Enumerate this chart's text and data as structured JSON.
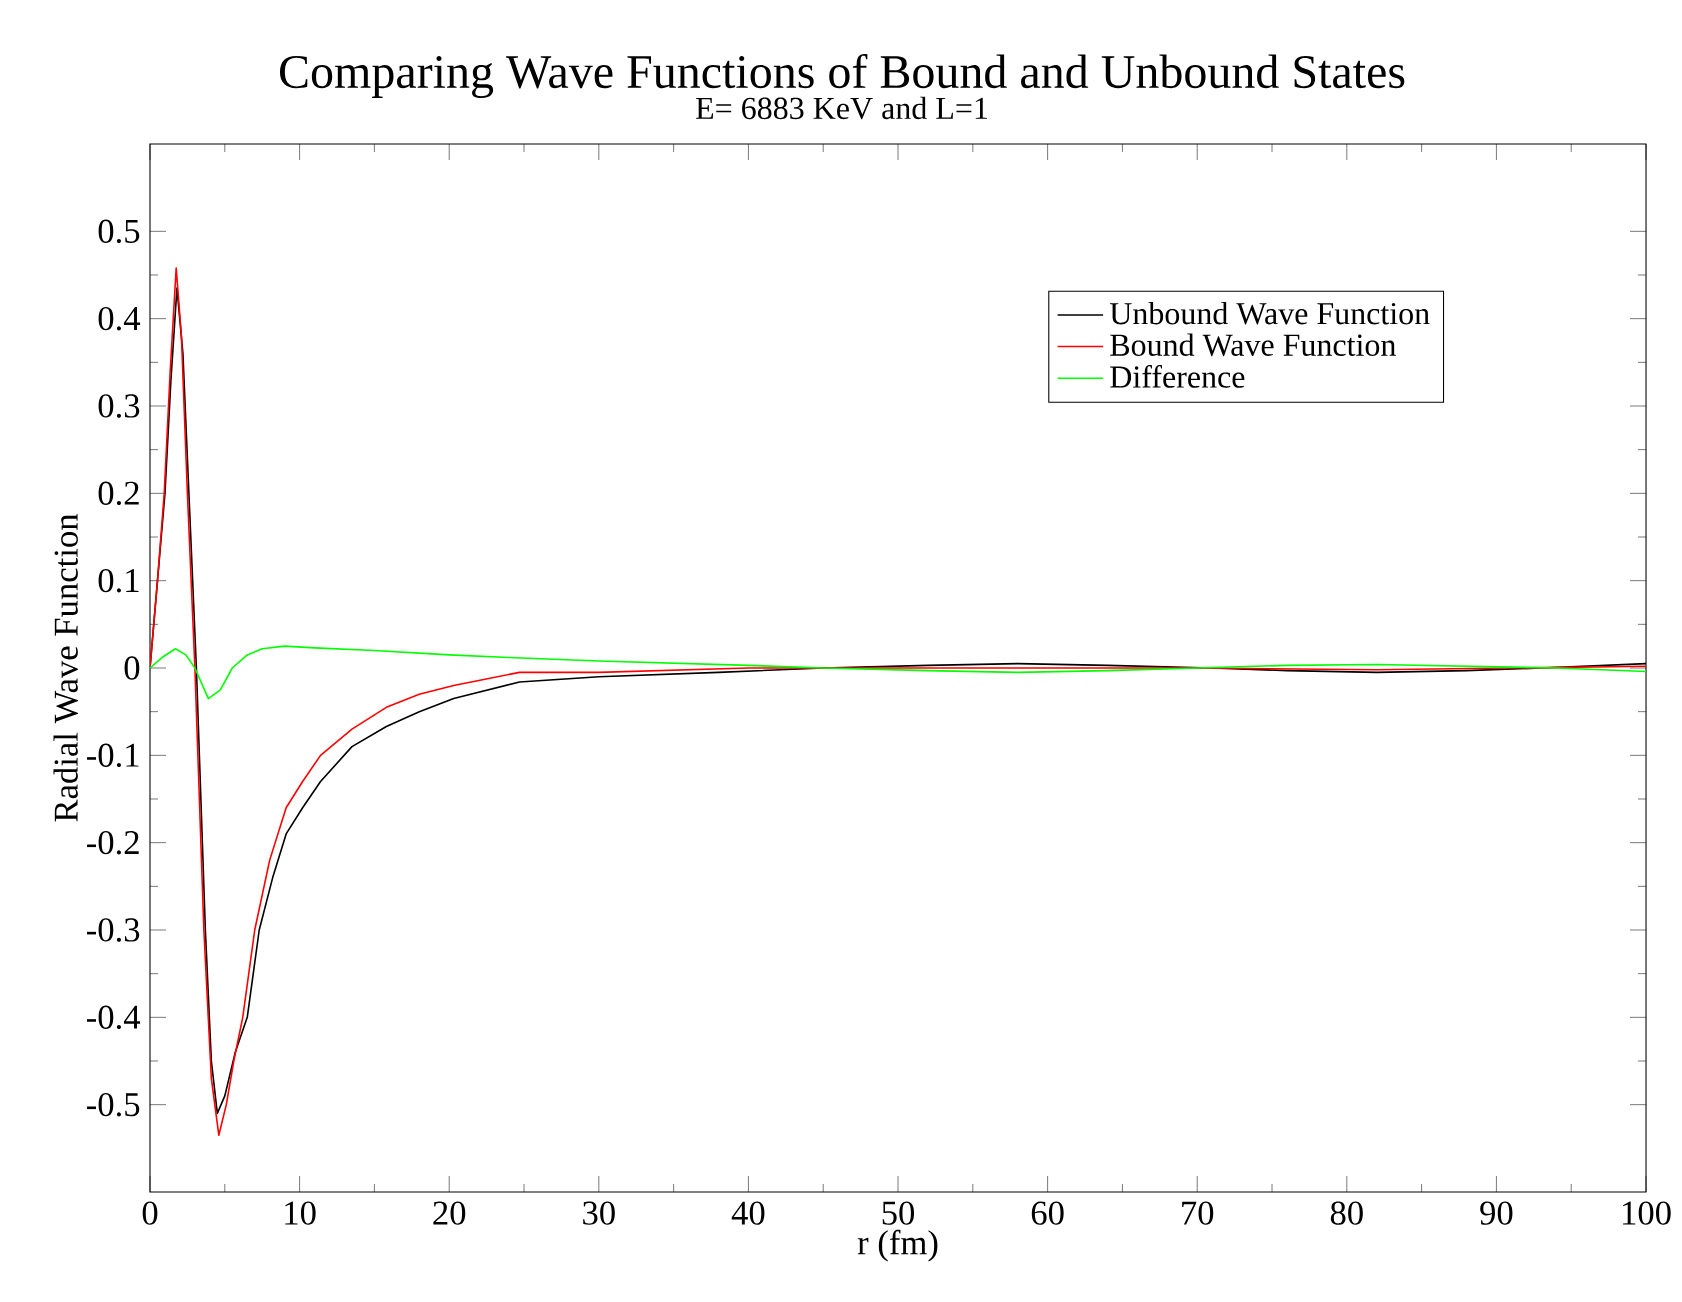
{
  "chart_data": {
    "type": "line",
    "title": "Comparing Wave Functions of Bound and Unbound States",
    "subtitle": "E= 6883 KeV and  L=1",
    "xlabel": "r (fm)",
    "ylabel": "Radial Wave Function",
    "xlim": [
      0,
      100
    ],
    "ylim": [
      -0.6,
      0.6
    ],
    "xticks": [
      0,
      10,
      20,
      30,
      40,
      50,
      60,
      70,
      80,
      90,
      100
    ],
    "yticks": [
      -0.5,
      -0.4,
      -0.3,
      -0.2,
      -0.1,
      0,
      0.1,
      0.2,
      0.3,
      0.4,
      0.5
    ],
    "legend": "top right",
    "marker": "none",
    "line_style": "solid",
    "grid": false,
    "series": [
      {
        "name": "Unbound Wave Function",
        "color": "#000000",
        "x": [
          0,
          0.5,
          1.0,
          1.4,
          1.8,
          2.2,
          2.6,
          3.1,
          3.7,
          4.1,
          4.5,
          5.0,
          5.7,
          6.5,
          7.3,
          8.2,
          9.1,
          10.2,
          11.4,
          13.5,
          15.8,
          18,
          20.3,
          24.7,
          30,
          38,
          45,
          52,
          58,
          64,
          71,
          76,
          82,
          88,
          93,
          100
        ],
        "values": [
          0,
          0.1,
          0.2,
          0.33,
          0.435,
          0.36,
          0.2,
          0,
          -0.3,
          -0.45,
          -0.51,
          -0.49,
          -0.44,
          -0.4,
          -0.3,
          -0.24,
          -0.19,
          -0.16,
          -0.13,
          -0.09,
          -0.067,
          -0.05,
          -0.035,
          -0.016,
          -0.01,
          -0.005,
          0,
          0.003,
          0.005,
          0.003,
          0,
          -0.003,
          -0.005,
          -0.003,
          0,
          0.005
        ]
      },
      {
        "name": "Bound Wave Function",
        "color": "#ff0000",
        "x": [
          0,
          0.5,
          0.95,
          1.35,
          1.75,
          2.1,
          2.5,
          3.0,
          3.6,
          4.1,
          4.6,
          5.1,
          5.6,
          6.2,
          7.0,
          8.0,
          9.1,
          10.2,
          11.4,
          13.5,
          15.8,
          18,
          20.3,
          24.7,
          30,
          40,
          45,
          58,
          70,
          82,
          100
        ],
        "values": [
          0,
          0.1,
          0.2,
          0.34,
          0.458,
          0.38,
          0.2,
          0,
          -0.3,
          -0.47,
          -0.535,
          -0.5,
          -0.45,
          -0.4,
          -0.3,
          -0.22,
          -0.16,
          -0.13,
          -0.1,
          -0.07,
          -0.045,
          -0.03,
          -0.02,
          -0.005,
          -0.005,
          0,
          0,
          0,
          0,
          -0.002,
          0.002
        ]
      },
      {
        "name": "Difference",
        "color": "#00ff00",
        "x": [
          0,
          0.8,
          1.7,
          2.4,
          3.0,
          3.9,
          4.7,
          5.5,
          6.5,
          7.5,
          9,
          11,
          15,
          20,
          24,
          30,
          40,
          45,
          52,
          58,
          64,
          70,
          76,
          82,
          88,
          94,
          100
        ],
        "values": [
          0,
          0.012,
          0.022,
          0.015,
          0,
          -0.035,
          -0.025,
          0,
          0.015,
          0.022,
          0.025,
          0.023,
          0.02,
          0.015,
          0.012,
          0.008,
          0.003,
          0,
          -0.003,
          -0.005,
          -0.003,
          0,
          0.003,
          0.004,
          0.002,
          0,
          -0.004
        ]
      }
    ]
  }
}
